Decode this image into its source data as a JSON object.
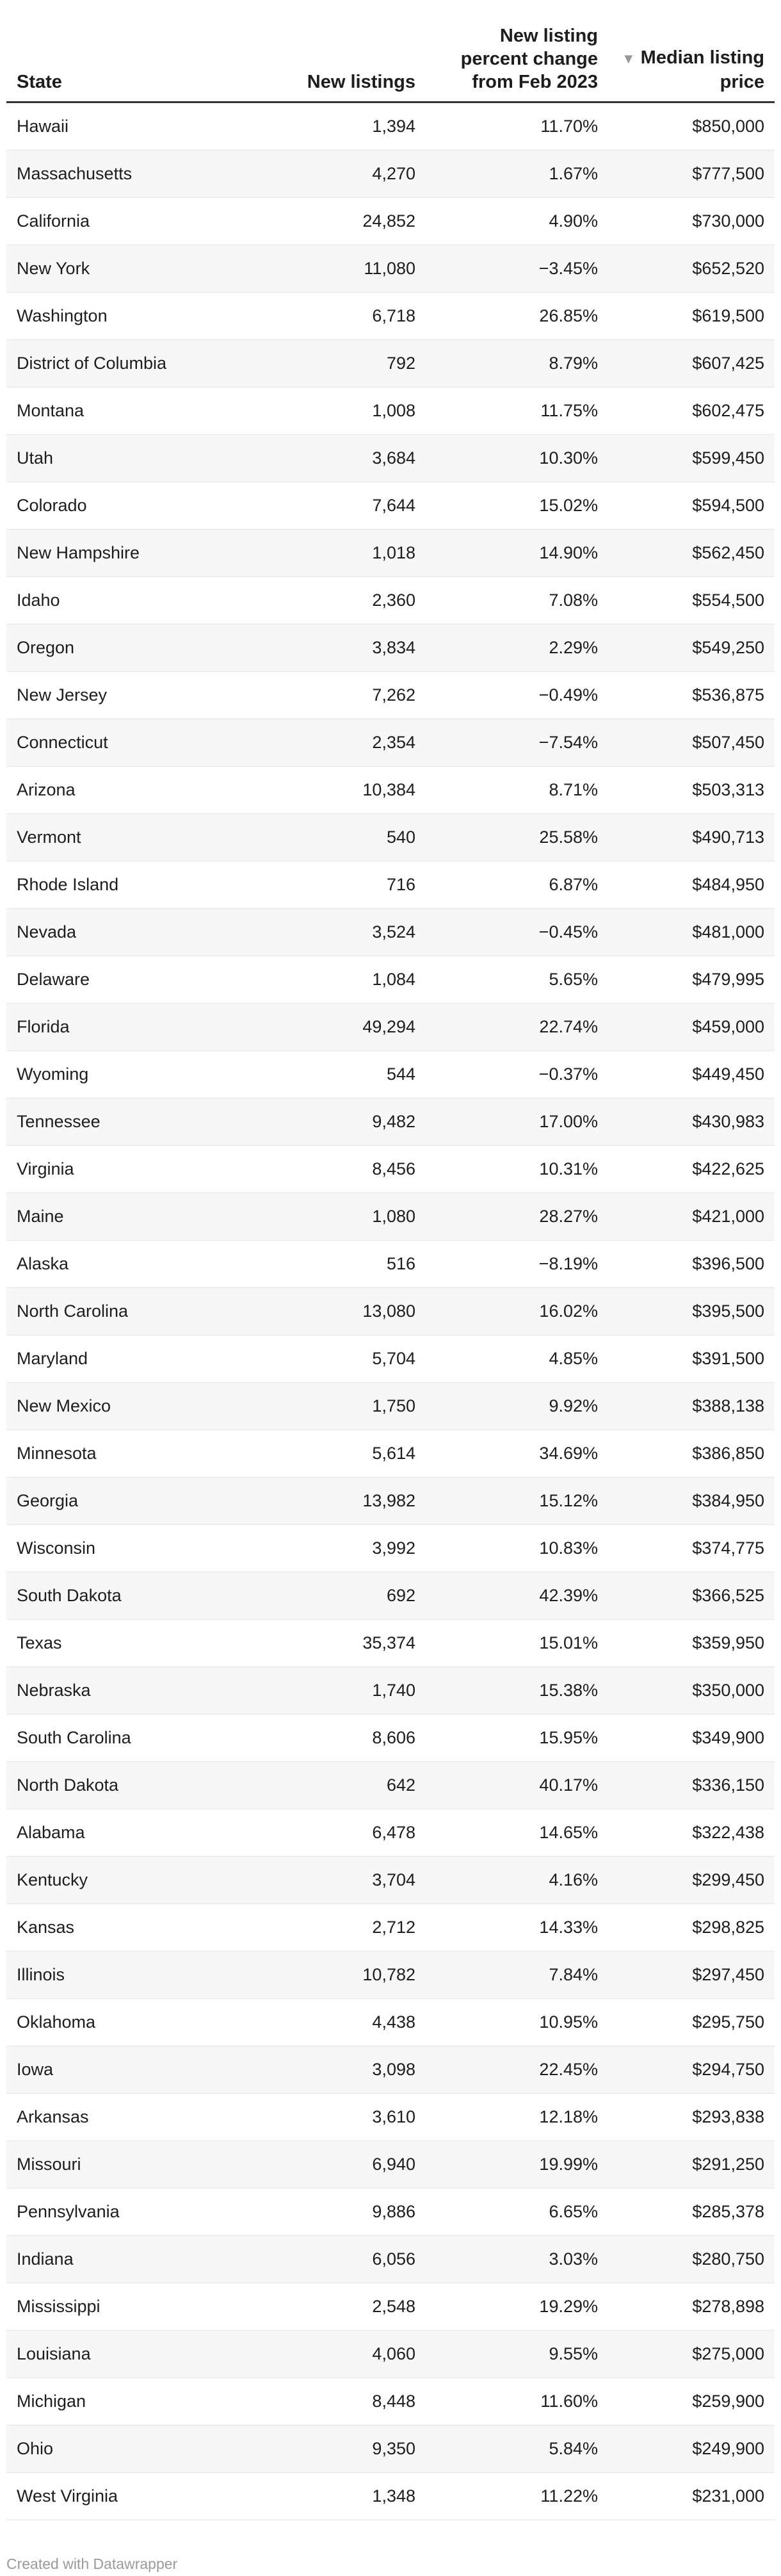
{
  "chart_data": {
    "type": "table",
    "columns": [
      {
        "key": "state",
        "label": "State"
      },
      {
        "key": "new_listings",
        "label": "New listings"
      },
      {
        "key": "pct_change",
        "label": "New listing percent change from Feb 2023"
      },
      {
        "key": "median_price",
        "label": "Median listing price",
        "sorted": "descending"
      }
    ],
    "rows": [
      [
        "Hawaii",
        "1,394",
        "11.70%",
        "$850,000"
      ],
      [
        "Massachusetts",
        "4,270",
        "1.67%",
        "$777,500"
      ],
      [
        "California",
        "24,852",
        "4.90%",
        "$730,000"
      ],
      [
        "New York",
        "11,080",
        "−3.45%",
        "$652,520"
      ],
      [
        "Washington",
        "6,718",
        "26.85%",
        "$619,500"
      ],
      [
        "District of Columbia",
        "792",
        "8.79%",
        "$607,425"
      ],
      [
        "Montana",
        "1,008",
        "11.75%",
        "$602,475"
      ],
      [
        "Utah",
        "3,684",
        "10.30%",
        "$599,450"
      ],
      [
        "Colorado",
        "7,644",
        "15.02%",
        "$594,500"
      ],
      [
        "New Hampshire",
        "1,018",
        "14.90%",
        "$562,450"
      ],
      [
        "Idaho",
        "2,360",
        "7.08%",
        "$554,500"
      ],
      [
        "Oregon",
        "3,834",
        "2.29%",
        "$549,250"
      ],
      [
        "New Jersey",
        "7,262",
        "−0.49%",
        "$536,875"
      ],
      [
        "Connecticut",
        "2,354",
        "−7.54%",
        "$507,450"
      ],
      [
        "Arizona",
        "10,384",
        "8.71%",
        "$503,313"
      ],
      [
        "Vermont",
        "540",
        "25.58%",
        "$490,713"
      ],
      [
        "Rhode Island",
        "716",
        "6.87%",
        "$484,950"
      ],
      [
        "Nevada",
        "3,524",
        "−0.45%",
        "$481,000"
      ],
      [
        "Delaware",
        "1,084",
        "5.65%",
        "$479,995"
      ],
      [
        "Florida",
        "49,294",
        "22.74%",
        "$459,000"
      ],
      [
        "Wyoming",
        "544",
        "−0.37%",
        "$449,450"
      ],
      [
        "Tennessee",
        "9,482",
        "17.00%",
        "$430,983"
      ],
      [
        "Virginia",
        "8,456",
        "10.31%",
        "$422,625"
      ],
      [
        "Maine",
        "1,080",
        "28.27%",
        "$421,000"
      ],
      [
        "Alaska",
        "516",
        "−8.19%",
        "$396,500"
      ],
      [
        "North Carolina",
        "13,080",
        "16.02%",
        "$395,500"
      ],
      [
        "Maryland",
        "5,704",
        "4.85%",
        "$391,500"
      ],
      [
        "New Mexico",
        "1,750",
        "9.92%",
        "$388,138"
      ],
      [
        "Minnesota",
        "5,614",
        "34.69%",
        "$386,850"
      ],
      [
        "Georgia",
        "13,982",
        "15.12%",
        "$384,950"
      ],
      [
        "Wisconsin",
        "3,992",
        "10.83%",
        "$374,775"
      ],
      [
        "South Dakota",
        "692",
        "42.39%",
        "$366,525"
      ],
      [
        "Texas",
        "35,374",
        "15.01%",
        "$359,950"
      ],
      [
        "Nebraska",
        "1,740",
        "15.38%",
        "$350,000"
      ],
      [
        "South Carolina",
        "8,606",
        "15.95%",
        "$349,900"
      ],
      [
        "North Dakota",
        "642",
        "40.17%",
        "$336,150"
      ],
      [
        "Alabama",
        "6,478",
        "14.65%",
        "$322,438"
      ],
      [
        "Kentucky",
        "3,704",
        "4.16%",
        "$299,450"
      ],
      [
        "Kansas",
        "2,712",
        "14.33%",
        "$298,825"
      ],
      [
        "Illinois",
        "10,782",
        "7.84%",
        "$297,450"
      ],
      [
        "Oklahoma",
        "4,438",
        "10.95%",
        "$295,750"
      ],
      [
        "Iowa",
        "3,098",
        "22.45%",
        "$294,750"
      ],
      [
        "Arkansas",
        "3,610",
        "12.18%",
        "$293,838"
      ],
      [
        "Missouri",
        "6,940",
        "19.99%",
        "$291,250"
      ],
      [
        "Pennsylvania",
        "9,886",
        "6.65%",
        "$285,378"
      ],
      [
        "Indiana",
        "6,056",
        "3.03%",
        "$280,750"
      ],
      [
        "Mississippi",
        "2,548",
        "19.29%",
        "$278,898"
      ],
      [
        "Louisiana",
        "4,060",
        "9.55%",
        "$275,000"
      ],
      [
        "Michigan",
        "8,448",
        "11.60%",
        "$259,900"
      ],
      [
        "Ohio",
        "9,350",
        "5.84%",
        "$249,900"
      ],
      [
        "West Virginia",
        "1,348",
        "11.22%",
        "$231,000"
      ]
    ]
  },
  "sort_icon": "triangle-down-icon",
  "colors": {
    "header_rule": "#333333",
    "row_stripe": "#f7f7f7",
    "row_rule": "#e6e6e6",
    "footer_text": "#9a9a9a"
  },
  "footer": {
    "credit": "Created with Datawrapper"
  }
}
